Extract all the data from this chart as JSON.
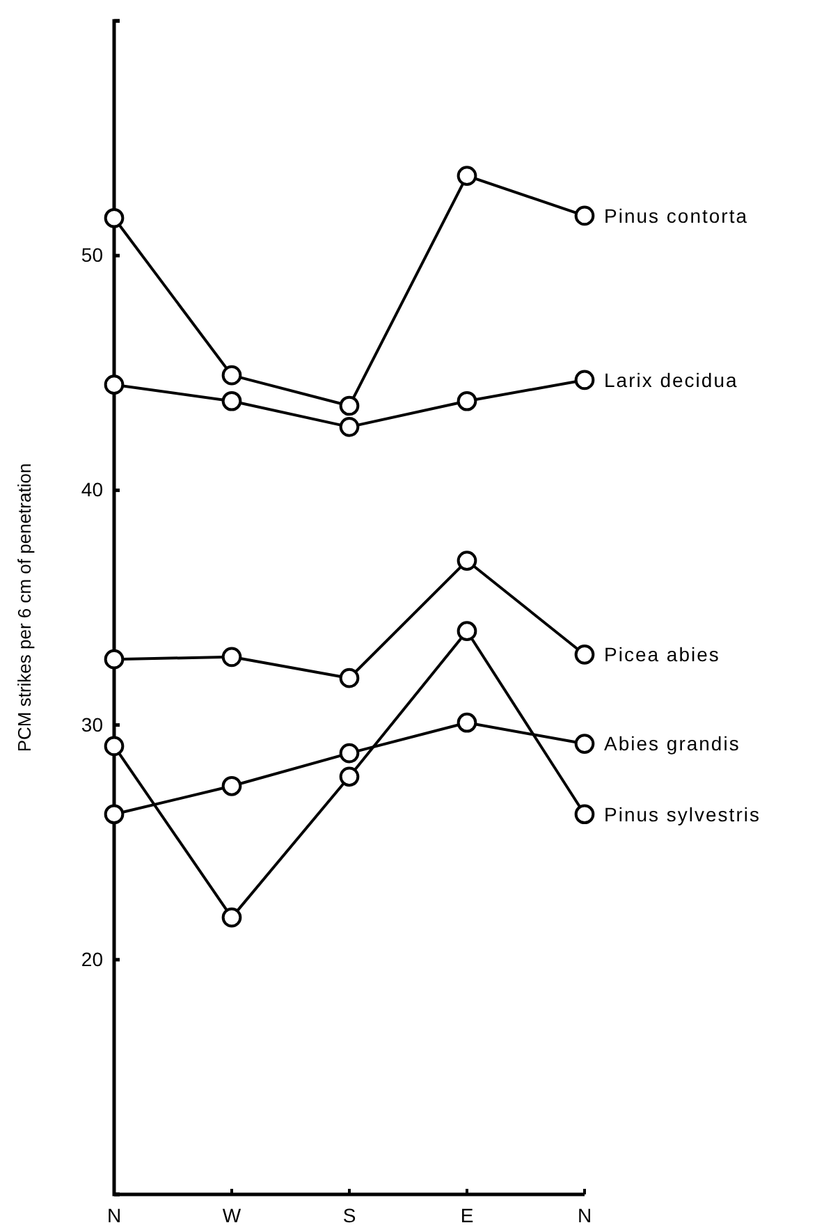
{
  "chart_data": {
    "type": "line",
    "ylabel": "PCM strikes per 6 cm of penetration",
    "categories": [
      "N",
      "W",
      "S",
      "E",
      "N"
    ],
    "ylim": [
      10,
      60
    ],
    "yticks": [
      {
        "value": 10,
        "label": null
      },
      20,
      30,
      40,
      50,
      {
        "value": 60,
        "label": null
      }
    ],
    "marker": "circle",
    "line_style": "solid",
    "series": [
      {
        "name": "Pinus contorta",
        "color": "#000000",
        "values": [
          51.6,
          44.9,
          43.6,
          53.4,
          51.7
        ]
      },
      {
        "name": "Larix decidua",
        "color": "#000000",
        "values": [
          44.5,
          43.8,
          42.7,
          43.8,
          44.7
        ]
      },
      {
        "name": "Picea abies",
        "color": "#000000",
        "values": [
          32.8,
          32.9,
          32.0,
          37.0,
          33.0
        ]
      },
      {
        "name": "Abies grandis",
        "color": "#000000",
        "values": [
          26.2,
          27.4,
          28.8,
          30.1,
          29.2
        ]
      },
      {
        "name": "Pinus sylvestris",
        "color": "#000000",
        "values": [
          29.1,
          21.8,
          27.8,
          34.0,
          26.2
        ]
      }
    ]
  }
}
